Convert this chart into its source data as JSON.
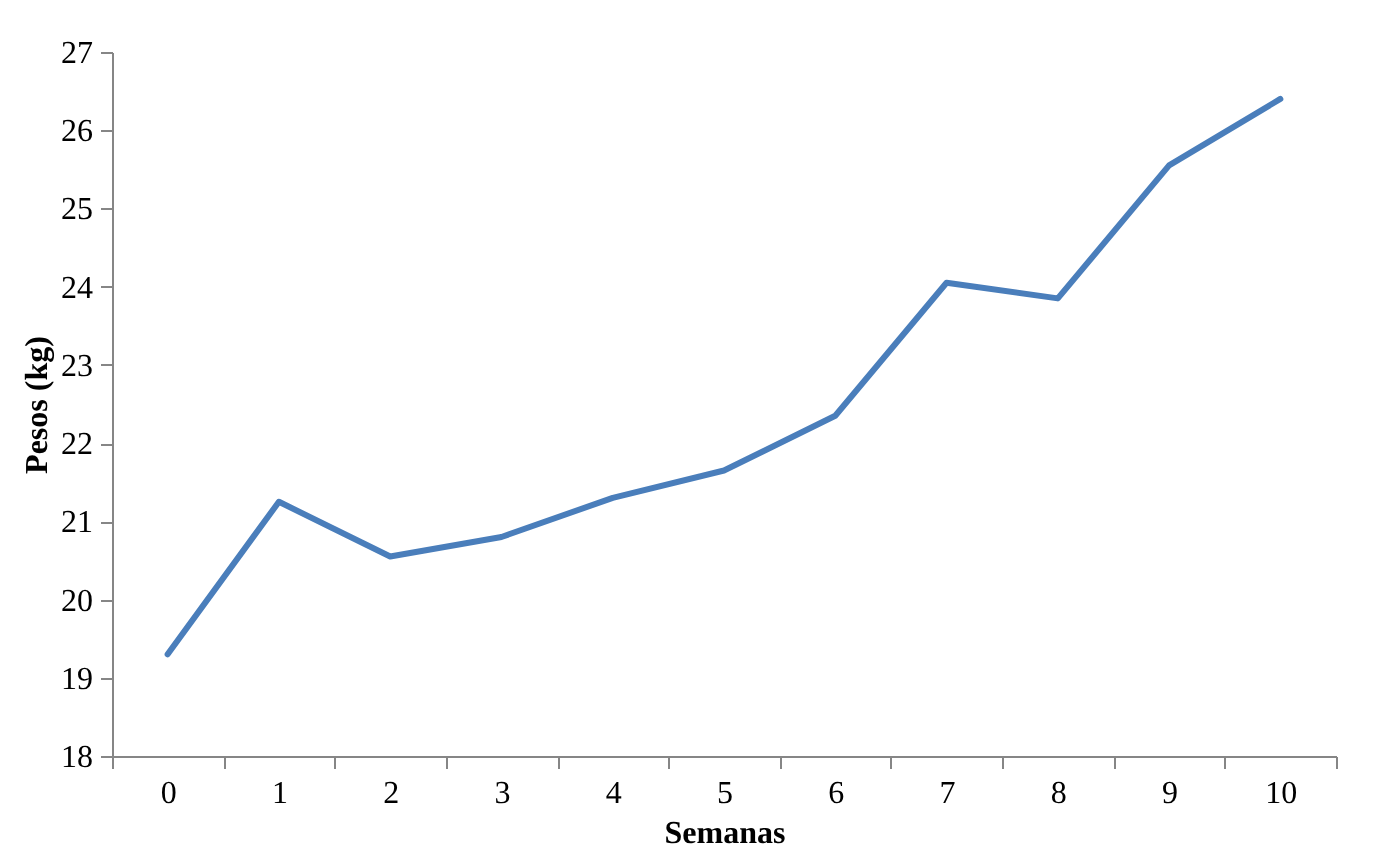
{
  "chart_data": {
    "type": "line",
    "xlabel": "Semanas",
    "ylabel": "Pesos (kg)",
    "categories": [
      "0",
      "1",
      "2",
      "3",
      "4",
      "5",
      "6",
      "7",
      "8",
      "9",
      "10"
    ],
    "series": [
      {
        "color": "#4a7ebb",
        "values": [
          19.3,
          21.25,
          20.55,
          20.8,
          21.3,
          21.65,
          22.35,
          24.05,
          23.85,
          25.55,
          26.4
        ]
      }
    ],
    "ylim": [
      18,
      27
    ],
    "yticks": [
      18,
      19,
      20,
      21,
      22,
      23,
      24,
      25,
      26,
      27
    ],
    "grid": false,
    "legend": false,
    "marker": "none",
    "line_style": "solid"
  }
}
